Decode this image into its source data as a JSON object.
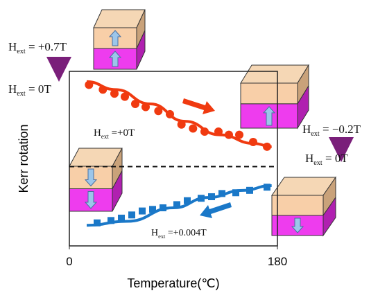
{
  "chart_data": {
    "type": "scatter",
    "x_label": "Temperature(℃)",
    "y_label": "Kerr rotation",
    "xlim": [
      0,
      180
    ],
    "xticks": [
      0,
      180
    ],
    "ylim": [
      -1,
      1.2
    ],
    "zero_line": true,
    "series": [
      {
        "color": "#f03a10",
        "mode": "markers",
        "marker": "circle",
        "x": [
          17,
          29,
          39,
          48,
          57,
          66,
          77,
          87,
          97,
          107,
          117,
          129,
          138,
          147,
          159,
          171
        ],
        "values": [
          1.03,
          0.97,
          0.92,
          0.88,
          0.79,
          0.75,
          0.7,
          0.66,
          0.53,
          0.48,
          0.44,
          0.44,
          0.4,
          0.4,
          0.31,
          0.25
        ]
      },
      {
        "color": "#f03a10",
        "mode": "line",
        "x": [
          15,
          40,
          70,
          100,
          130,
          160,
          175
        ],
        "values": [
          1.07,
          0.97,
          0.79,
          0.57,
          0.4,
          0.29,
          0.25
        ]
      },
      {
        "color": "#1a78c8",
        "mode": "markers",
        "marker": "square",
        "x": [
          24,
          36,
          45,
          54,
          63,
          72,
          81,
          93,
          102,
          114,
          123,
          132,
          144,
          156,
          171
        ],
        "values": [
          -0.71,
          -0.68,
          -0.65,
          -0.61,
          -0.56,
          -0.54,
          -0.52,
          -0.48,
          -0.43,
          -0.4,
          -0.38,
          -0.34,
          -0.33,
          -0.3,
          -0.26
        ]
      },
      {
        "color": "#1a78c8",
        "mode": "line",
        "x": [
          15,
          50,
          90,
          120,
          150,
          175
        ],
        "values": [
          -0.74,
          -0.69,
          -0.52,
          -0.39,
          -0.3,
          -0.24
        ]
      }
    ],
    "annotations": [
      {
        "base": "H",
        "sub": "ext",
        "rest": " = +0.7T"
      },
      {
        "base": "H",
        "sub": "ext",
        "rest": " = 0T"
      },
      {
        "base": "H",
        "sub": "ext",
        "rest": " =+0T"
      },
      {
        "base": "H",
        "sub": "ext",
        "rest": " = −0.2T"
      },
      {
        "base": "H",
        "sub": "ext",
        "rest": " = 0T"
      },
      {
        "base": "H",
        "sub": "ext",
        "rest": " =+0.004T"
      }
    ]
  }
}
